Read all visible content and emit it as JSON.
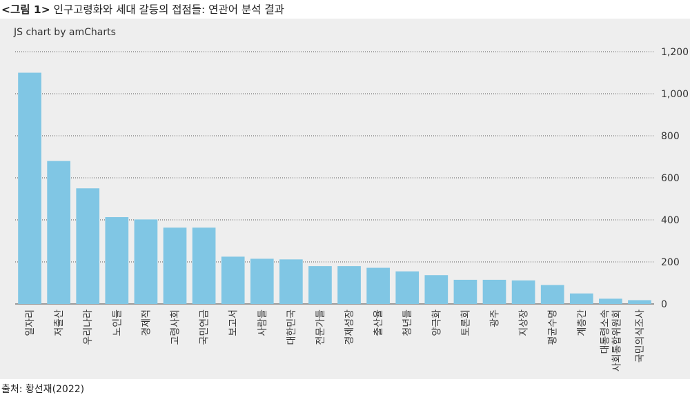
{
  "title": {
    "prefix": "<그림 1>",
    "text": " 인구고령화와 세대 갈등의 접점들: 연관어 분석 결과"
  },
  "credit": "JS chart by amCharts",
  "source": "출처:  황선재(2022)",
  "colors": {
    "bar": "#80c6e4",
    "panel": "#eeeeee",
    "grid": "#555555",
    "text": "#333333"
  },
  "chart_data": {
    "type": "bar",
    "title": "",
    "xlabel": "",
    "ylabel": "",
    "ylim": [
      0,
      1200
    ],
    "yticks": [
      0,
      200,
      400,
      600,
      800,
      1000,
      1200
    ],
    "ytick_labels": [
      "0",
      "200",
      "400",
      "600",
      "800",
      "1,000",
      "1,200"
    ],
    "y_axis_position": "right",
    "grid": "horizontal dotted",
    "categories": [
      "일자리",
      "저출산",
      "우리나라",
      "노인들",
      "경제적",
      "고령사회",
      "국민연금",
      "보고서",
      "사람들",
      "대한민국",
      "전문가들",
      "경제성장",
      "출산율",
      "청년들",
      "양극화",
      "토론회",
      "광주",
      "지상장",
      "평균수명",
      "계층간",
      "대통령소속 사회통합위원회",
      "국민의식조사"
    ],
    "category_label_lines": [
      [
        "일자리"
      ],
      [
        "저출산"
      ],
      [
        "우리나라"
      ],
      [
        "노인들"
      ],
      [
        "경제적"
      ],
      [
        "고령사회"
      ],
      [
        "국민연금"
      ],
      [
        "보고서"
      ],
      [
        "사람들"
      ],
      [
        "대한민국"
      ],
      [
        "전문가들"
      ],
      [
        "경제성장"
      ],
      [
        "출산율"
      ],
      [
        "청년들"
      ],
      [
        "양극화"
      ],
      [
        "토론회"
      ],
      [
        "광주"
      ],
      [
        "지상장"
      ],
      [
        "평균수명"
      ],
      [
        "계층간"
      ],
      [
        "대통령소속",
        "사회통합위원회"
      ],
      [
        "국민의식조사"
      ]
    ],
    "values": [
      1100,
      680,
      550,
      413,
      402,
      363,
      363,
      225,
      215,
      212,
      180,
      180,
      172,
      155,
      137,
      115,
      115,
      112,
      90,
      50,
      25,
      18
    ]
  }
}
